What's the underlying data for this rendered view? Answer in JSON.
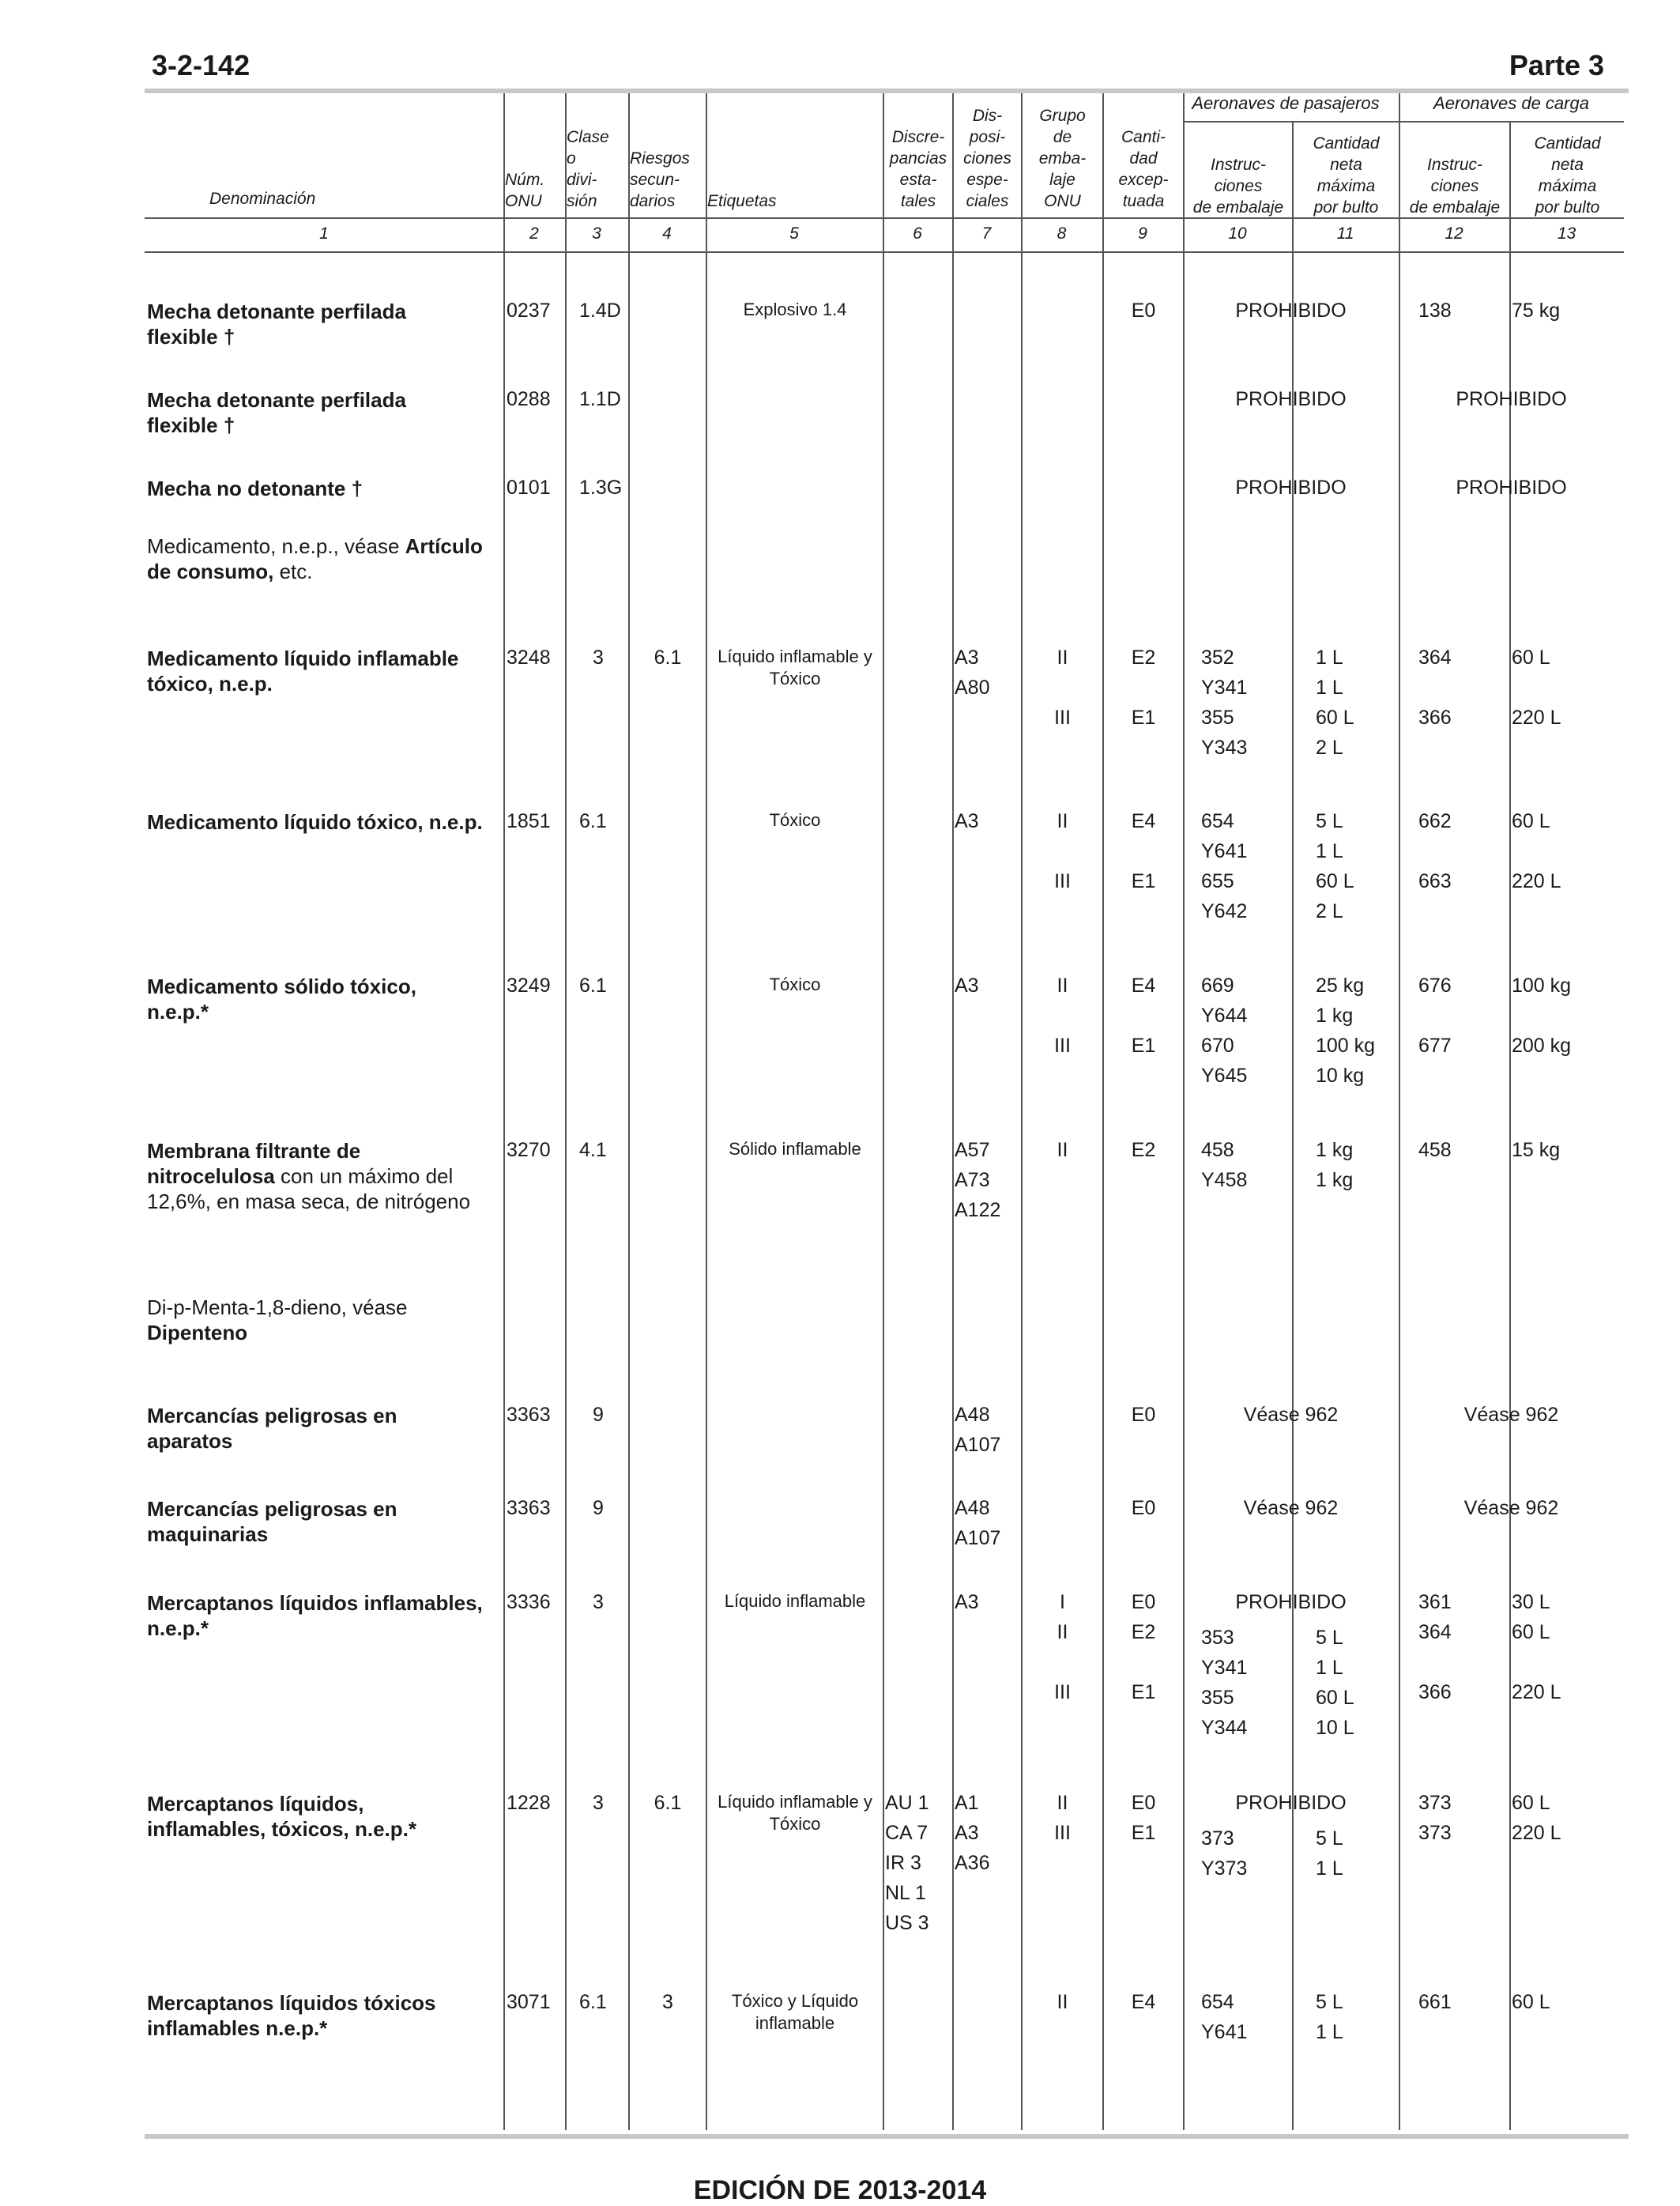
{
  "header": {
    "page_number": "3-2-142",
    "part": "Parte 3"
  },
  "columns": {
    "denominacion": "Denominación",
    "num_onu": [
      "Núm.",
      "ONU"
    ],
    "clase": [
      "Clase",
      "o",
      "divi-",
      "sión"
    ],
    "riesgos": [
      "Riesgos",
      "secun-",
      "darios"
    ],
    "etiquetas": "Etiquetas",
    "discrepancias": [
      "Discre-",
      "pancias",
      "esta-",
      "tales"
    ],
    "disposiciones": [
      "Dis-",
      "posi-",
      "ciones",
      "espe-",
      "ciales"
    ],
    "grupo": [
      "Grupo",
      "de",
      "emba-",
      "laje",
      "ONU"
    ],
    "cantidad_exceptuada": [
      "Canti-",
      "dad",
      "excep-",
      "tuada"
    ],
    "pasajeros_group": "Aeronaves de pasajeros",
    "carga_group": "Aeronaves de carga",
    "instrucciones": [
      "Instruc-",
      "ciones",
      "de embalaje"
    ],
    "cantidad_neta": [
      "Cantidad",
      "neta",
      "máxima",
      "por bulto"
    ],
    "numbers": [
      "1",
      "2",
      "3",
      "4",
      "5",
      "6",
      "7",
      "8",
      "9",
      "10",
      "11",
      "12",
      "13"
    ]
  },
  "rows": [
    {
      "name": [
        {
          "b": "Mecha detonante perfilada"
        },
        {
          "b": "flexible †"
        }
      ],
      "un": "0237",
      "cls": "1.4D",
      "sub": "",
      "lbl": [
        "Explosivo 1.4"
      ],
      "disc": [],
      "sp": [],
      "grp": [],
      "eq": [
        "E0"
      ],
      "pi": [],
      "pq": [],
      "ci": [
        "138"
      ],
      "cq": [
        "75 kg"
      ],
      "pax_text": "PROHIBIDO",
      "cargo_text": ""
    },
    {
      "name": [
        {
          "b": "Mecha detonante perfilada"
        },
        {
          "b": "flexible †"
        }
      ],
      "un": "0288",
      "cls": "1.1D",
      "sub": "",
      "lbl": [],
      "disc": [],
      "sp": [],
      "grp": [],
      "eq": [],
      "pi": [],
      "pq": [],
      "ci": [],
      "cq": [],
      "pax_text": "PROHIBIDO",
      "cargo_text": "PROHIBIDO"
    },
    {
      "name": [
        {
          "b": "Mecha no detonante †"
        }
      ],
      "un": "0101",
      "cls": "1.3G",
      "sub": "",
      "lbl": [],
      "disc": [],
      "sp": [],
      "grp": [],
      "eq": [],
      "pi": [],
      "pq": [],
      "ci": [],
      "cq": [],
      "pax_text": "PROHIBIDO",
      "cargo_text": "PROHIBIDO"
    },
    {
      "name_ref": [
        "Medicamento, n.e.p., véase ",
        "Artículo",
        "de consumo,",
        " etc."
      ]
    },
    {
      "name": [
        {
          "b": "Medicamento líquido inflamable"
        },
        {
          "b": "tóxico, n.e.p."
        }
      ],
      "un": "3248",
      "cls": "3",
      "sub": "6.1",
      "lbl": [
        "Líquido inflamable y",
        "Tóxico"
      ],
      "disc": [],
      "sp": [
        "A3",
        "A80"
      ],
      "grp": [
        "II",
        "",
        "III",
        ""
      ],
      "eq": [
        "E2",
        "",
        "E1",
        ""
      ],
      "pi": [
        "352",
        "Y341",
        "355",
        "Y343"
      ],
      "pq": [
        "1 L",
        "1 L",
        "60 L",
        "2 L"
      ],
      "ci": [
        "364",
        "",
        "366",
        ""
      ],
      "cq": [
        "60 L",
        "",
        "220 L",
        ""
      ]
    },
    {
      "name": [
        {
          "b": "Medicamento líquido tóxico, n.e.p."
        }
      ],
      "un": "1851",
      "cls": "6.1",
      "sub": "",
      "lbl": [
        "Tóxico"
      ],
      "disc": [],
      "sp": [
        "A3"
      ],
      "grp": [
        "II",
        "",
        "III",
        ""
      ],
      "eq": [
        "E4",
        "",
        "E1",
        ""
      ],
      "pi": [
        "654",
        "Y641",
        "655",
        "Y642"
      ],
      "pq": [
        "5 L",
        "1 L",
        "60 L",
        "2 L"
      ],
      "ci": [
        "662",
        "",
        "663",
        ""
      ],
      "cq": [
        "60 L",
        "",
        "220 L",
        ""
      ]
    },
    {
      "name": [
        {
          "b": "Medicamento sólido tóxico,"
        },
        {
          "b": "n.e.p.*"
        }
      ],
      "un": "3249",
      "cls": "6.1",
      "sub": "",
      "lbl": [
        "Tóxico"
      ],
      "disc": [],
      "sp": [
        "A3"
      ],
      "grp": [
        "II",
        "",
        "III",
        ""
      ],
      "eq": [
        "E4",
        "",
        "E1",
        ""
      ],
      "pi": [
        "669",
        "Y644",
        "670",
        "Y645"
      ],
      "pq": [
        "25 kg",
        "1 kg",
        "100 kg",
        "10 kg"
      ],
      "ci": [
        "676",
        "",
        "677",
        ""
      ],
      "cq": [
        "100 kg",
        "",
        "200 kg",
        ""
      ]
    },
    {
      "name_mixed": [
        [
          "b",
          "Membrana filtrante de"
        ],
        [
          "b",
          "nitrocelulosa",
          " con un máximo del"
        ],
        [
          "n",
          "12,6%, en masa  seca, de nitrógeno"
        ]
      ],
      "un": "3270",
      "cls": "4.1",
      "sub": "",
      "lbl": [
        "Sólido inflamable"
      ],
      "disc": [],
      "sp": [
        "A57",
        "A73",
        "A122"
      ],
      "grp": [
        "II"
      ],
      "eq": [
        "E2"
      ],
      "pi": [
        "458",
        "Y458"
      ],
      "pq": [
        "1 kg",
        "1 kg"
      ],
      "ci": [
        "458"
      ],
      "cq": [
        "15 kg"
      ]
    },
    {
      "name_ref2": [
        "Di-p-Menta-1,8-dieno, véase",
        "Dipenteno"
      ]
    },
    {
      "name": [
        {
          "b": "Mercancías peligrosas en"
        },
        {
          "b": "aparatos"
        }
      ],
      "un": "3363",
      "cls": "9",
      "sub": "",
      "lbl": [],
      "disc": [],
      "sp": [
        "A48",
        "A107"
      ],
      "grp": [],
      "eq": [
        "E0"
      ],
      "pax_text": "Véase 962",
      "cargo_text": "Véase 962"
    },
    {
      "name": [
        {
          "b": "Mercancías peligrosas en"
        },
        {
          "b": "maquinarias"
        }
      ],
      "un": "3363",
      "cls": "9",
      "sub": "",
      "lbl": [],
      "disc": [],
      "sp": [
        "A48",
        "A107"
      ],
      "grp": [],
      "eq": [
        "E0"
      ],
      "pax_text": "Véase 962",
      "cargo_text": "Véase 962"
    },
    {
      "name": [
        {
          "b": "Mercaptanos líquidos inflamables,"
        },
        {
          "b": "n.e.p.*"
        }
      ],
      "un": "3336",
      "cls": "3",
      "sub": "",
      "lbl": [
        "Líquido inflamable"
      ],
      "disc": [],
      "sp": [
        "A3"
      ],
      "grp": [
        "I",
        "II",
        "",
        "III",
        ""
      ],
      "eq": [
        "E0",
        "E2",
        "",
        "E1",
        ""
      ],
      "pax_text": "PROHIBIDO",
      "pi": [
        "353",
        "Y341",
        "355",
        "Y344"
      ],
      "pq": [
        "5 L",
        "1 L",
        "60 L",
        "10 L"
      ],
      "ci": [
        "361",
        "364",
        "",
        "366",
        ""
      ],
      "cq": [
        "30 L",
        "60 L",
        "",
        "220 L",
        ""
      ]
    },
    {
      "name": [
        {
          "b": "Mercaptanos líquidos,"
        },
        {
          "b": "inflamables, tóxicos, n.e.p.*"
        }
      ],
      "un": "1228",
      "cls": "3",
      "sub": "6.1",
      "lbl": [
        "Líquido inflamable y",
        "Tóxico"
      ],
      "disc": [
        "AU 1",
        "CA 7",
        "IR 3",
        "NL 1",
        "US 3"
      ],
      "sp": [
        "A1",
        "A3",
        "A36"
      ],
      "grp": [
        "II",
        "III"
      ],
      "eq": [
        "E0",
        "E1"
      ],
      "pax_text": "PROHIBIDO",
      "pi": [
        "373",
        "Y373"
      ],
      "pq": [
        "5 L",
        "1 L"
      ],
      "ci": [
        "373",
        "373"
      ],
      "cq": [
        "60 L",
        "220 L"
      ]
    },
    {
      "name": [
        {
          "b": "Mercaptanos líquidos tóxicos"
        },
        {
          "b": "inflamables n.e.p.*"
        }
      ],
      "un": "3071",
      "cls": "6.1",
      "sub": "3",
      "lbl": [
        "Tóxico y Líquido",
        "inflamable"
      ],
      "disc": [],
      "sp": [],
      "grp": [
        "II"
      ],
      "eq": [
        "E4"
      ],
      "pi": [
        "654",
        "Y641"
      ],
      "pq": [
        "5 L",
        "1 L"
      ],
      "ci": [
        "661"
      ],
      "cq": [
        "60 L"
      ]
    }
  ],
  "footer": "EDICIÓN DE 2013-2014"
}
